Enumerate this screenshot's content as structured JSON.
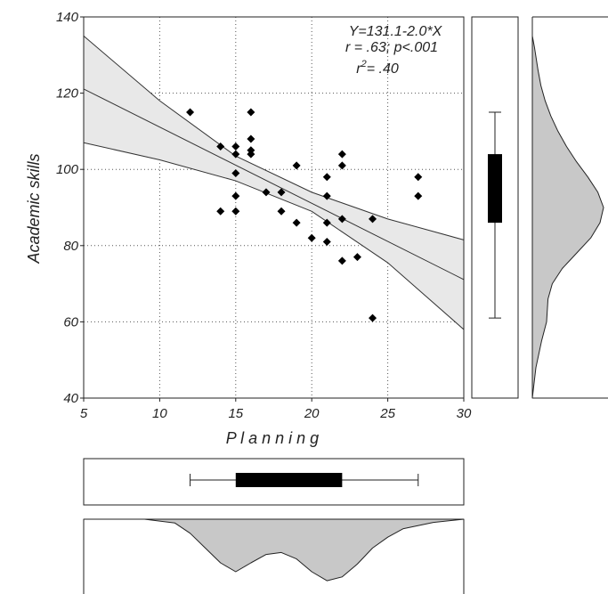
{
  "chart_data": {
    "type": "scatter",
    "title": "",
    "xlabel": "P l a n n i n g",
    "ylabel": "Academic skills",
    "xlim": [
      5,
      30
    ],
    "ylim": [
      40,
      140
    ],
    "x_ticks": [
      5,
      10,
      15,
      20,
      25,
      30
    ],
    "y_ticks": [
      40,
      60,
      80,
      100,
      120,
      140
    ],
    "x_tick_labels": [
      "5",
      "10",
      "15",
      "20",
      "25",
      "30"
    ],
    "y_tick_labels": [
      "40",
      "60",
      "80",
      "100",
      "120",
      "140"
    ],
    "grid": true,
    "annotations": {
      "equation": "Y=131.1-2.0*X",
      "correlation": "r = .63; p<.001",
      "r2_base": "r",
      "r2_exp": "2",
      "r2_value": "= .40"
    },
    "regression": {
      "intercept": 131.1,
      "slope": -2.0
    },
    "confidence_band": {
      "x": [
        5,
        10,
        15,
        20,
        25,
        30
      ],
      "lower": [
        107,
        102.5,
        97,
        89,
        75.5,
        58
      ],
      "upper": [
        135,
        118,
        103.5,
        94,
        87,
        81.5
      ]
    },
    "points": [
      {
        "x": 12,
        "y": 115
      },
      {
        "x": 14,
        "y": 106
      },
      {
        "x": 14,
        "y": 89
      },
      {
        "x": 15,
        "y": 106
      },
      {
        "x": 15,
        "y": 104
      },
      {
        "x": 15,
        "y": 99
      },
      {
        "x": 15,
        "y": 93
      },
      {
        "x": 15,
        "y": 89
      },
      {
        "x": 16,
        "y": 115
      },
      {
        "x": 16,
        "y": 108
      },
      {
        "x": 16,
        "y": 105
      },
      {
        "x": 16,
        "y": 104
      },
      {
        "x": 17,
        "y": 94
      },
      {
        "x": 18,
        "y": 94
      },
      {
        "x": 18,
        "y": 89
      },
      {
        "x": 19,
        "y": 101
      },
      {
        "x": 19,
        "y": 86
      },
      {
        "x": 20,
        "y": 82
      },
      {
        "x": 21,
        "y": 98
      },
      {
        "x": 21,
        "y": 93
      },
      {
        "x": 21,
        "y": 86
      },
      {
        "x": 21,
        "y": 81
      },
      {
        "x": 22,
        "y": 104
      },
      {
        "x": 22,
        "y": 101
      },
      {
        "x": 22,
        "y": 87
      },
      {
        "x": 22,
        "y": 76
      },
      {
        "x": 23,
        "y": 77
      },
      {
        "x": 24,
        "y": 87
      },
      {
        "x": 24,
        "y": 61
      },
      {
        "x": 27,
        "y": 98
      },
      {
        "x": 27,
        "y": 93
      }
    ],
    "y_boxplot": {
      "min": 61,
      "q1": 86,
      "q3": 104,
      "max": 115
    },
    "x_boxplot": {
      "min": 12,
      "q1": 15,
      "q3": 22,
      "max": 27
    },
    "y_density": {
      "y": [
        40,
        48,
        55,
        60,
        66,
        70,
        74,
        78,
        82,
        86,
        90,
        94,
        98,
        102,
        106,
        110,
        114,
        118,
        122,
        126,
        132,
        135
      ],
      "density": [
        0,
        0.05,
        0.13,
        0.2,
        0.22,
        0.28,
        0.42,
        0.62,
        0.82,
        0.95,
        1.0,
        0.92,
        0.78,
        0.62,
        0.48,
        0.36,
        0.26,
        0.18,
        0.12,
        0.08,
        0.03,
        0
      ]
    },
    "x_density": {
      "x": [
        5,
        9,
        11,
        12,
        13,
        14,
        15,
        16,
        17,
        18,
        19,
        20,
        21,
        22,
        23,
        24,
        25,
        26,
        28,
        30
      ],
      "density": [
        0,
        0,
        0.06,
        0.22,
        0.45,
        0.68,
        0.82,
        0.68,
        0.55,
        0.52,
        0.62,
        0.82,
        0.96,
        0.9,
        0.7,
        0.45,
        0.28,
        0.15,
        0.05,
        0
      ]
    }
  }
}
